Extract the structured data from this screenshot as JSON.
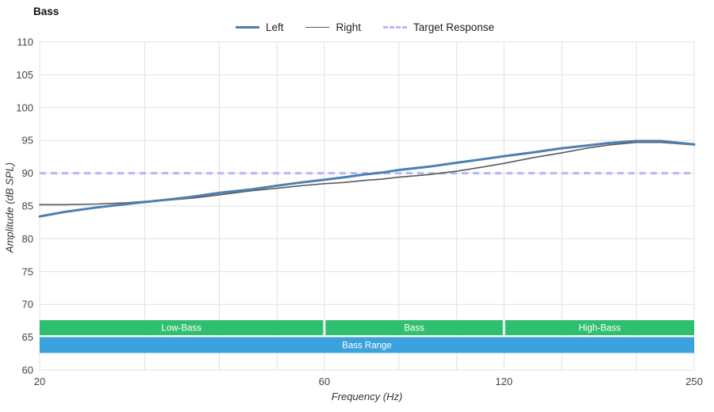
{
  "chart_data": {
    "type": "line",
    "title": "Bass",
    "xlabel": "Frequency (Hz)",
    "ylabel": "Amplitude (dB SPL)",
    "x_scale": "log",
    "xlim": [
      20,
      250
    ],
    "ylim": [
      60,
      110
    ],
    "x_ticks": [
      20,
      60,
      120,
      250
    ],
    "x_gridlines": [
      20,
      30,
      40,
      50,
      60,
      80,
      100,
      120,
      150,
      200,
      250
    ],
    "y_ticks": [
      60,
      65,
      70,
      75,
      80,
      85,
      90,
      95,
      100,
      105,
      110
    ],
    "grid_on": true,
    "grid_color": "#e0e0e0",
    "tick_color": "#444444",
    "legend_position": "top-center",
    "series": [
      {
        "name": "Left",
        "color": "#4d7fb0",
        "width": 3,
        "z": 3,
        "points": [
          [
            20,
            83.4
          ],
          [
            22,
            84.1
          ],
          [
            25,
            84.8
          ],
          [
            28,
            85.3
          ],
          [
            30,
            85.6
          ],
          [
            33,
            86.0
          ],
          [
            36,
            86.4
          ],
          [
            40,
            87.0
          ],
          [
            45,
            87.5
          ],
          [
            50,
            88.1
          ],
          [
            55,
            88.6
          ],
          [
            60,
            89.0
          ],
          [
            65,
            89.4
          ],
          [
            70,
            89.8
          ],
          [
            75,
            90.1
          ],
          [
            80,
            90.5
          ],
          [
            90,
            91.0
          ],
          [
            100,
            91.6
          ],
          [
            110,
            92.1
          ],
          [
            120,
            92.6
          ],
          [
            135,
            93.2
          ],
          [
            150,
            93.8
          ],
          [
            165,
            94.2
          ],
          [
            180,
            94.6
          ],
          [
            200,
            94.9
          ],
          [
            220,
            94.9
          ],
          [
            250,
            94.4
          ]
        ]
      },
      {
        "name": "Right",
        "color": "#58595b",
        "width": 1.6,
        "z": 2,
        "points": [
          [
            20,
            85.2
          ],
          [
            22,
            85.2
          ],
          [
            25,
            85.3
          ],
          [
            28,
            85.5
          ],
          [
            30,
            85.7
          ],
          [
            33,
            85.9
          ],
          [
            36,
            86.2
          ],
          [
            40,
            86.7
          ],
          [
            45,
            87.3
          ],
          [
            50,
            87.7
          ],
          [
            55,
            88.1
          ],
          [
            60,
            88.4
          ],
          [
            65,
            88.6
          ],
          [
            70,
            88.9
          ],
          [
            75,
            89.1
          ],
          [
            80,
            89.4
          ],
          [
            90,
            89.8
          ],
          [
            100,
            90.3
          ],
          [
            110,
            90.9
          ],
          [
            120,
            91.5
          ],
          [
            135,
            92.4
          ],
          [
            150,
            93.1
          ],
          [
            165,
            93.8
          ],
          [
            180,
            94.3
          ],
          [
            200,
            94.7
          ],
          [
            220,
            94.7
          ],
          [
            250,
            94.3
          ]
        ]
      },
      {
        "name": "Target Response",
        "color": "#b3b9f8",
        "width": 3,
        "dash": "8 6",
        "z": 1,
        "y_const": 90
      }
    ],
    "bands": [
      {
        "label": "Low-Bass",
        "x0": 20,
        "x1": 60,
        "y0": 65.3,
        "y1": 67.6,
        "color": "#2fbf6f"
      },
      {
        "label": "Bass",
        "x0": 60,
        "x1": 120,
        "y0": 65.3,
        "y1": 67.6,
        "color": "#2fbf6f"
      },
      {
        "label": "High-Bass",
        "x0": 120,
        "x1": 250,
        "y0": 65.3,
        "y1": 67.6,
        "color": "#2fbf6f"
      },
      {
        "label": "Bass Range",
        "x0": 20,
        "x1": 250,
        "y0": 62.6,
        "y1": 65.0,
        "color": "#3aa2dc"
      }
    ]
  }
}
